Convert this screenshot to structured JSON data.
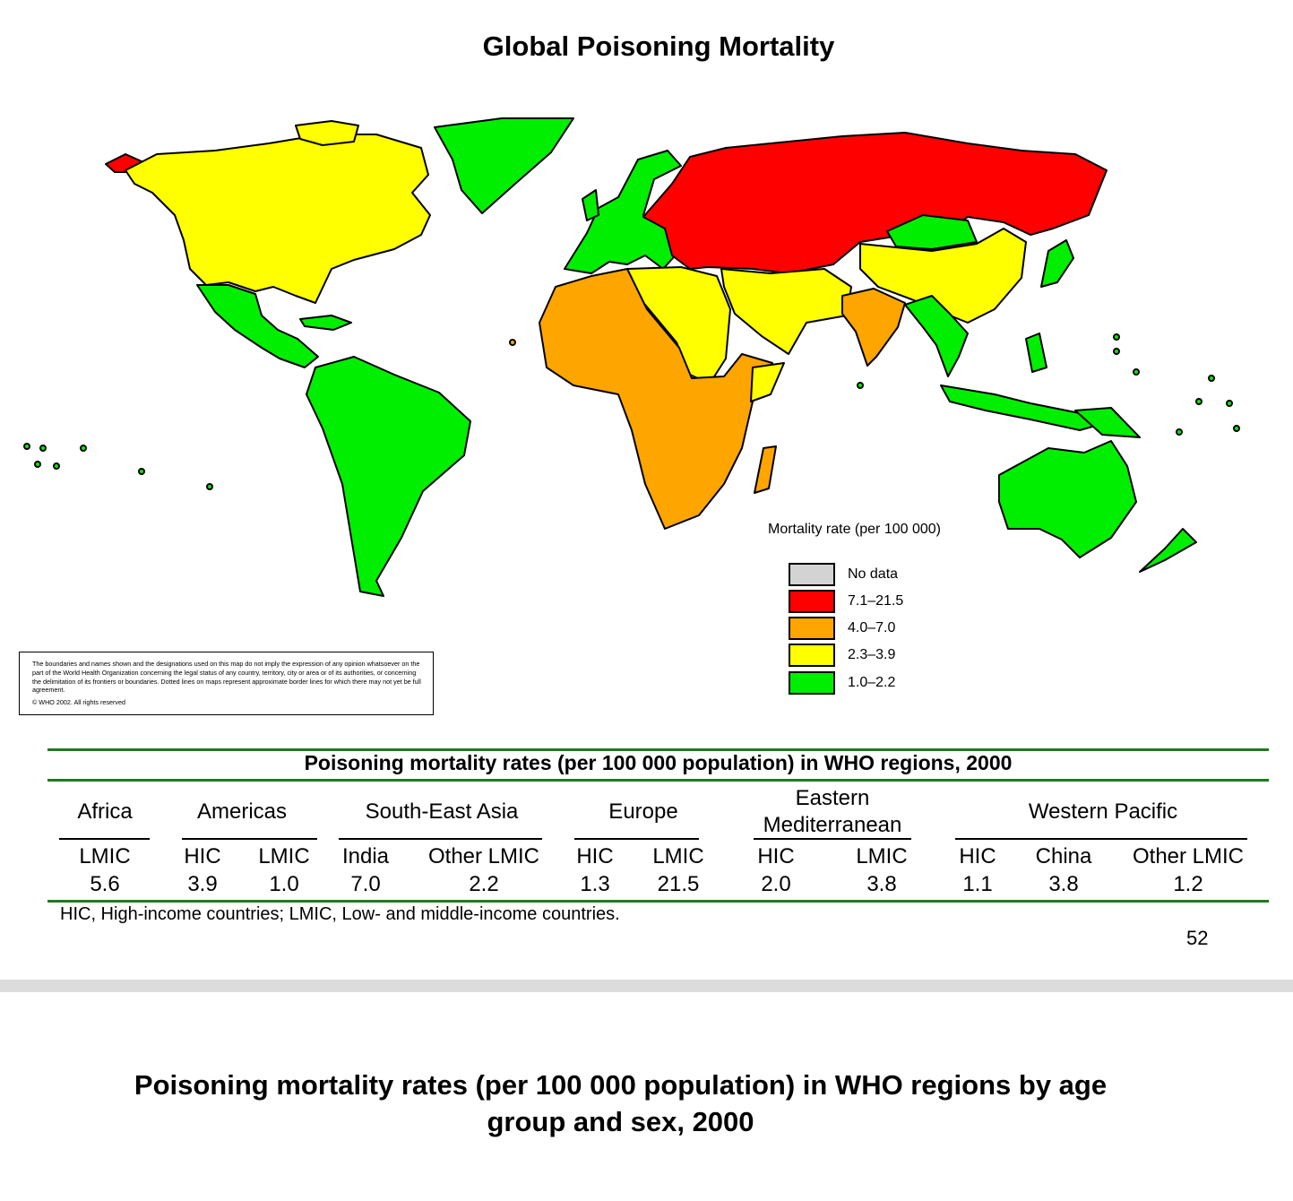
{
  "slide": {
    "title": "Global Poisoning Mortality",
    "page_number": "52"
  },
  "map": {
    "legend_title": "Mortality rate (per 100 000)",
    "legend": [
      {
        "label": "No data",
        "color": "#d3d3d3"
      },
      {
        "label": "7.1–21.5",
        "color": "#ff0000"
      },
      {
        "label": "4.0–7.0",
        "color": "#ffa500"
      },
      {
        "label": "2.3–3.9",
        "color": "#ffff00"
      },
      {
        "label": "1.0–2.2",
        "color": "#00ee00"
      }
    ],
    "disclaimer": "The boundaries and names shown and the designations used on this map do not imply the expression of any opinion whatsoever on the part of the World Health Organization concerning the legal status of any country, territory, city or area or of its authorities, or concerning the delimitation of its frontiers or boundaries. Dotted lines on maps represent approximate border lines for which there may not yet be full agreement.",
    "copyright": "© WHO 2002. All rights reserved"
  },
  "table": {
    "title": "Poisoning mortality rates (per 100 000 population) in WHO regions, 2000",
    "regions": [
      {
        "name": "Africa"
      },
      {
        "name": "Americas"
      },
      {
        "name": "South-East Asia"
      },
      {
        "name": "Europe"
      },
      {
        "name": "Eastern Mediterranean",
        "line1": "Eastern",
        "line2": "Mediterranean"
      },
      {
        "name": "Western Pacific"
      }
    ],
    "columns": [
      {
        "region": "Africa",
        "group": "LMIC",
        "value": "5.6"
      },
      {
        "region": "Americas",
        "group": "HIC",
        "value": "3.9"
      },
      {
        "region": "Americas",
        "group": "LMIC",
        "value": "1.0"
      },
      {
        "region": "South-East Asia",
        "group": "India",
        "value": "7.0"
      },
      {
        "region": "South-East Asia",
        "group": "Other LMIC",
        "value": "2.2"
      },
      {
        "region": "Europe",
        "group": "HIC",
        "value": "1.3"
      },
      {
        "region": "Europe",
        "group": "LMIC",
        "value": "21.5"
      },
      {
        "region": "Eastern Mediterranean",
        "group": "HIC",
        "value": "2.0"
      },
      {
        "region": "Eastern Mediterranean",
        "group": "LMIC",
        "value": "3.8"
      },
      {
        "region": "Western Pacific",
        "group": "HIC",
        "value": "1.1"
      },
      {
        "region": "Western Pacific",
        "group": "China",
        "value": "3.8"
      },
      {
        "region": "Western Pacific",
        "group": "Other LMIC",
        "value": "1.2"
      }
    ],
    "footnote": "HIC, High-income countries; LMIC, Low- and middle-income countries."
  },
  "next_slide": {
    "title_line1": "Poisoning mortality rates (per 100 000 population) in WHO regions by age",
    "title_line2": "group and sex, 2000"
  }
}
